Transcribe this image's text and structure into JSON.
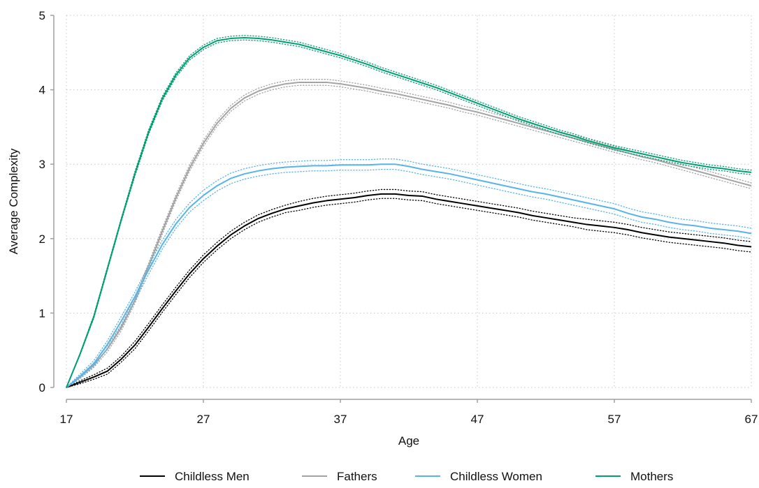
{
  "chart_data": {
    "type": "line",
    "title": "",
    "xlabel": "Age",
    "ylabel": "Average Complexity",
    "xlim": [
      17,
      67
    ],
    "ylim": [
      0,
      5
    ],
    "x_ticks": [
      17,
      27,
      37,
      47,
      57,
      67
    ],
    "y_ticks": [
      0,
      1,
      2,
      3,
      4,
      5
    ],
    "grid": true,
    "legend_position": "bottom",
    "x": [
      17,
      18,
      19,
      20,
      21,
      22,
      23,
      24,
      25,
      26,
      27,
      28,
      29,
      30,
      31,
      32,
      33,
      34,
      35,
      36,
      37,
      38,
      39,
      40,
      41,
      42,
      43,
      44,
      45,
      46,
      47,
      48,
      49,
      50,
      51,
      52,
      53,
      54,
      55,
      56,
      57,
      58,
      59,
      60,
      61,
      62,
      63,
      64,
      65,
      66,
      67
    ],
    "series": [
      {
        "name": "Childless Men",
        "color": "#000000",
        "values": [
          0,
          0.07,
          0.14,
          0.22,
          0.38,
          0.57,
          0.81,
          1.06,
          1.3,
          1.53,
          1.73,
          1.9,
          2.05,
          2.17,
          2.27,
          2.34,
          2.4,
          2.44,
          2.48,
          2.51,
          2.53,
          2.55,
          2.58,
          2.6,
          2.6,
          2.58,
          2.57,
          2.53,
          2.5,
          2.47,
          2.44,
          2.41,
          2.38,
          2.35,
          2.31,
          2.28,
          2.25,
          2.22,
          2.19,
          2.17,
          2.15,
          2.12,
          2.08,
          2.05,
          2.02,
          2.0,
          1.98,
          1.96,
          1.94,
          1.91,
          1.89
        ],
        "ci_upper": [
          0,
          0.09,
          0.17,
          0.26,
          0.42,
          0.62,
          0.86,
          1.11,
          1.35,
          1.58,
          1.78,
          1.95,
          2.1,
          2.22,
          2.32,
          2.39,
          2.45,
          2.5,
          2.54,
          2.57,
          2.59,
          2.61,
          2.64,
          2.66,
          2.66,
          2.64,
          2.63,
          2.59,
          2.56,
          2.53,
          2.5,
          2.47,
          2.44,
          2.41,
          2.37,
          2.34,
          2.31,
          2.28,
          2.26,
          2.24,
          2.22,
          2.19,
          2.15,
          2.12,
          2.09,
          2.07,
          2.05,
          2.03,
          2.01,
          1.98,
          1.96
        ],
        "ci_lower": [
          0,
          0.05,
          0.11,
          0.18,
          0.34,
          0.52,
          0.76,
          1.01,
          1.25,
          1.48,
          1.68,
          1.85,
          2.0,
          2.12,
          2.22,
          2.29,
          2.35,
          2.38,
          2.42,
          2.45,
          2.47,
          2.49,
          2.52,
          2.54,
          2.54,
          2.52,
          2.51,
          2.47,
          2.44,
          2.41,
          2.38,
          2.35,
          2.32,
          2.29,
          2.25,
          2.22,
          2.19,
          2.16,
          2.12,
          2.1,
          2.08,
          2.05,
          2.01,
          1.98,
          1.95,
          1.93,
          1.91,
          1.89,
          1.87,
          1.84,
          1.82
        ]
      },
      {
        "name": "Fathers",
        "color": "#a3a3a3",
        "values": [
          0,
          0.14,
          0.3,
          0.52,
          0.8,
          1.17,
          1.63,
          2.1,
          2.55,
          2.95,
          3.28,
          3.55,
          3.75,
          3.89,
          3.98,
          4.04,
          4.08,
          4.1,
          4.1,
          4.1,
          4.08,
          4.05,
          4.02,
          3.98,
          3.95,
          3.91,
          3.87,
          3.83,
          3.79,
          3.74,
          3.7,
          3.65,
          3.6,
          3.55,
          3.5,
          3.45,
          3.4,
          3.35,
          3.3,
          3.25,
          3.2,
          3.15,
          3.1,
          3.06,
          3.01,
          2.96,
          2.91,
          2.86,
          2.81,
          2.76,
          2.71
        ],
        "ci_upper": [
          0,
          0.16,
          0.33,
          0.56,
          0.84,
          1.21,
          1.67,
          2.14,
          2.59,
          2.99,
          3.32,
          3.59,
          3.79,
          3.93,
          4.02,
          4.08,
          4.12,
          4.14,
          4.14,
          4.14,
          4.12,
          4.09,
          4.06,
          4.02,
          3.99,
          3.95,
          3.91,
          3.87,
          3.83,
          3.78,
          3.74,
          3.69,
          3.64,
          3.59,
          3.54,
          3.49,
          3.44,
          3.39,
          3.34,
          3.29,
          3.24,
          3.19,
          3.14,
          3.1,
          3.05,
          3.0,
          2.95,
          2.9,
          2.85,
          2.8,
          2.75
        ],
        "ci_lower": [
          0,
          0.12,
          0.27,
          0.48,
          0.76,
          1.13,
          1.59,
          2.06,
          2.51,
          2.91,
          3.24,
          3.51,
          3.71,
          3.85,
          3.94,
          4.0,
          4.04,
          4.06,
          4.06,
          4.06,
          4.04,
          4.01,
          3.98,
          3.94,
          3.91,
          3.87,
          3.83,
          3.79,
          3.75,
          3.7,
          3.66,
          3.61,
          3.56,
          3.51,
          3.46,
          3.41,
          3.36,
          3.31,
          3.26,
          3.21,
          3.16,
          3.11,
          3.06,
          3.02,
          2.97,
          2.92,
          2.87,
          2.82,
          2.77,
          2.72,
          2.67
        ]
      },
      {
        "name": "Childless Women",
        "color": "#56b4e9",
        "values": [
          0,
          0.15,
          0.32,
          0.58,
          0.89,
          1.22,
          1.58,
          1.92,
          2.2,
          2.42,
          2.58,
          2.71,
          2.81,
          2.87,
          2.91,
          2.94,
          2.96,
          2.97,
          2.98,
          2.98,
          2.99,
          2.99,
          2.99,
          3.0,
          3.0,
          2.97,
          2.93,
          2.9,
          2.87,
          2.83,
          2.79,
          2.75,
          2.71,
          2.67,
          2.63,
          2.6,
          2.56,
          2.52,
          2.48,
          2.44,
          2.4,
          2.34,
          2.29,
          2.26,
          2.22,
          2.19,
          2.17,
          2.14,
          2.12,
          2.1,
          2.07
        ],
        "ci_upper": [
          0,
          0.18,
          0.36,
          0.63,
          0.95,
          1.28,
          1.64,
          1.98,
          2.26,
          2.48,
          2.65,
          2.78,
          2.88,
          2.94,
          2.98,
          3.01,
          3.03,
          3.04,
          3.05,
          3.05,
          3.06,
          3.06,
          3.06,
          3.07,
          3.07,
          3.04,
          3.0,
          2.97,
          2.94,
          2.9,
          2.86,
          2.82,
          2.78,
          2.74,
          2.7,
          2.67,
          2.63,
          2.59,
          2.55,
          2.51,
          2.47,
          2.41,
          2.36,
          2.33,
          2.29,
          2.26,
          2.24,
          2.21,
          2.19,
          2.17,
          2.14
        ],
        "ci_lower": [
          0,
          0.12,
          0.28,
          0.53,
          0.83,
          1.16,
          1.52,
          1.86,
          2.14,
          2.36,
          2.51,
          2.64,
          2.74,
          2.8,
          2.84,
          2.87,
          2.89,
          2.9,
          2.91,
          2.91,
          2.92,
          2.92,
          2.92,
          2.93,
          2.93,
          2.9,
          2.86,
          2.83,
          2.8,
          2.76,
          2.72,
          2.68,
          2.64,
          2.6,
          2.56,
          2.53,
          2.49,
          2.45,
          2.41,
          2.37,
          2.33,
          2.27,
          2.22,
          2.19,
          2.15,
          2.12,
          2.1,
          2.07,
          2.05,
          2.03,
          2.0
        ]
      },
      {
        "name": "Mothers",
        "color": "#009e73",
        "values": [
          0,
          0.45,
          0.95,
          1.6,
          2.25,
          2.87,
          3.43,
          3.88,
          4.2,
          4.43,
          4.57,
          4.66,
          4.69,
          4.7,
          4.69,
          4.67,
          4.64,
          4.61,
          4.56,
          4.51,
          4.46,
          4.4,
          4.34,
          4.27,
          4.21,
          4.15,
          4.09,
          4.03,
          3.96,
          3.89,
          3.82,
          3.75,
          3.68,
          3.61,
          3.55,
          3.49,
          3.43,
          3.38,
          3.32,
          3.27,
          3.22,
          3.18,
          3.14,
          3.1,
          3.06,
          3.02,
          2.99,
          2.96,
          2.94,
          2.91,
          2.89
        ],
        "ci_upper": [
          0,
          0.46,
          0.97,
          1.62,
          2.27,
          2.9,
          3.46,
          3.91,
          4.23,
          4.46,
          4.6,
          4.69,
          4.72,
          4.73,
          4.72,
          4.7,
          4.67,
          4.64,
          4.59,
          4.54,
          4.49,
          4.43,
          4.37,
          4.3,
          4.24,
          4.18,
          4.12,
          4.06,
          3.99,
          3.92,
          3.85,
          3.78,
          3.71,
          3.64,
          3.58,
          3.52,
          3.46,
          3.41,
          3.35,
          3.3,
          3.25,
          3.21,
          3.17,
          3.13,
          3.09,
          3.05,
          3.02,
          2.99,
          2.97,
          2.94,
          2.92
        ],
        "ci_lower": [
          0,
          0.44,
          0.93,
          1.58,
          2.23,
          2.84,
          3.4,
          3.85,
          4.17,
          4.4,
          4.54,
          4.63,
          4.66,
          4.67,
          4.66,
          4.64,
          4.61,
          4.58,
          4.53,
          4.48,
          4.43,
          4.37,
          4.31,
          4.24,
          4.18,
          4.12,
          4.06,
          4.0,
          3.93,
          3.86,
          3.79,
          3.72,
          3.65,
          3.58,
          3.52,
          3.46,
          3.4,
          3.35,
          3.29,
          3.24,
          3.19,
          3.15,
          3.11,
          3.07,
          3.03,
          2.99,
          2.96,
          2.93,
          2.91,
          2.88,
          2.86
        ]
      }
    ]
  }
}
